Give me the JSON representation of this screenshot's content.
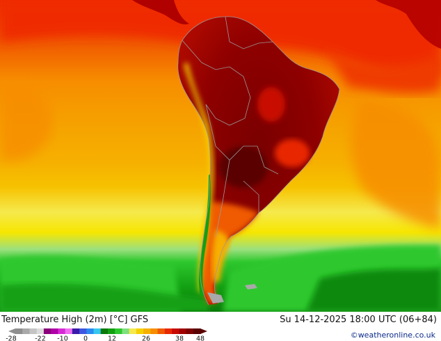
{
  "map": {
    "title": "Temperature High (2m) [°C] GFS",
    "valid_time": "Su 14-12-2025 18:00 UTC (06+84)",
    "credit": "©weatheronline.co.uk",
    "region": "South America",
    "legend": {
      "ticks": [
        "-28",
        "-22",
        "-10",
        "0",
        "12",
        "26",
        "38",
        "48"
      ],
      "colors": [
        "#8f8f8f",
        "#a9a9a9",
        "#c4c4c4",
        "#dcdcdc",
        "#8a007a",
        "#b000a8",
        "#d62ad6",
        "#ef6cf0",
        "#3a1aa8",
        "#3f57e0",
        "#2a8af0",
        "#36c6f0",
        "#0a7a0a",
        "#12a012",
        "#2ec82e",
        "#7ee07e",
        "#f5e94d",
        "#f5d000",
        "#f6b000",
        "#f78d00",
        "#f05a00",
        "#e82800",
        "#c80a00",
        "#a00000",
        "#7c0000",
        "#5a0000"
      ]
    },
    "palette": {
      "ocean_orange": "#f5a200",
      "ocean_light_orange": "#f7b500",
      "tropical_red": "#ef2a00",
      "land_dark_red": "#7f0000",
      "land_mid_red": "#b00000",
      "south_green": "#1ec81e",
      "south_dark_green": "#0a8a0a",
      "border_gray": "#9a9a9a"
    }
  }
}
